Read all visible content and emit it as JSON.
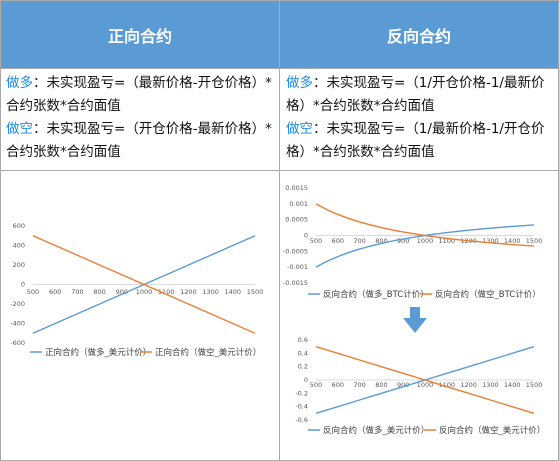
{
  "headers": {
    "left": "正向合约",
    "right": "反向合约"
  },
  "left_text": {
    "long_label": "做多",
    "long_line1": "：未实现盈亏=（最新价格-开仓价格）*",
    "long_line2": "合约张数*合约面值",
    "short_label": "做空",
    "short_line1": "：未实现盈亏=（开仓价格-最新价格）*",
    "short_line2": "合约张数*合约面值"
  },
  "right_text": {
    "long_label": "做多",
    "long_line1": "：未实现盈亏=（1/开仓价格-1/最新价",
    "long_line2": "格）*合约张数*合约面值",
    "short_label": "做空",
    "short_line1": "：未实现盈亏=（1/最新价格-1/开仓价",
    "short_line2": "格）*合约张数*合约面值"
  },
  "colors": {
    "header_bg": "#5b9bd5",
    "keyword": "#1f8dd6",
    "long_series": "#5b9bd5",
    "short_series": "#ed7d31",
    "arrow": "#5b9bd5"
  },
  "arrow_icon": "down-arrow-icon",
  "chart_data": [
    {
      "type": "line",
      "x": [
        500,
        600,
        700,
        800,
        900,
        1000,
        1100,
        1200,
        1300,
        1400,
        1500
      ],
      "x_ticks": [
        "500",
        "600",
        "700",
        "800",
        "900",
        "1000",
        "1100",
        "1200",
        "1300",
        "1400",
        "1500"
      ],
      "y_ticks": [
        "600",
        "400",
        "200",
        "0",
        "-200",
        "-400",
        "-600"
      ],
      "ylim": [
        -600,
        600
      ],
      "series": [
        {
          "name": "正向合约（做多_美元计价）",
          "values": [
            -500,
            -400,
            -300,
            -200,
            -100,
            0,
            100,
            200,
            300,
            400,
            500
          ]
        },
        {
          "name": "正向合约（做空_美元计价）",
          "values": [
            500,
            400,
            300,
            200,
            100,
            0,
            -100,
            -200,
            -300,
            -400,
            -500
          ]
        }
      ]
    },
    {
      "type": "line",
      "x": [
        500,
        600,
        700,
        800,
        900,
        1000,
        1100,
        1200,
        1300,
        1400,
        1500
      ],
      "x_ticks": [
        "500",
        "600",
        "700",
        "800",
        "900",
        "1000",
        "1100",
        "1200",
        "1300",
        "1400",
        "1500"
      ],
      "y_ticks": [
        "0.0015",
        "0.001",
        "0.0005",
        "0",
        "-0.0005",
        "-0.001",
        "-0.0015"
      ],
      "ylim": [
        -0.0015,
        0.0015
      ],
      "series": [
        {
          "name": "反向合约（做多_BTC计价）",
          "values": [
            -0.001,
            -0.000667,
            -0.000429,
            -0.00025,
            -0.000111,
            0,
            9.09e-05,
            0.000167,
            0.000231,
            0.000286,
            0.000333
          ]
        },
        {
          "name": "反向合约（做空_BTC计价）",
          "values": [
            0.001,
            0.000667,
            0.000429,
            0.00025,
            0.000111,
            0,
            -9.09e-05,
            -0.000167,
            -0.000231,
            -0.000286,
            -0.000333
          ]
        }
      ]
    },
    {
      "type": "line",
      "x": [
        500,
        600,
        700,
        800,
        900,
        1000,
        1100,
        1200,
        1300,
        1400,
        1500
      ],
      "x_ticks": [
        "500",
        "600",
        "700",
        "800",
        "900",
        "1000",
        "1100",
        "1200",
        "1300",
        "1400",
        "1500"
      ],
      "y_ticks": [
        "0.6",
        "0.4",
        "0.2",
        "0",
        "-0.2",
        "-0.4",
        "-0.6"
      ],
      "ylim": [
        -0.6,
        0.6
      ],
      "series": [
        {
          "name": "反向合约（做多_美元计价）",
          "values": [
            -0.5,
            -0.4,
            -0.3,
            -0.2,
            -0.1,
            0,
            0.1,
            0.2,
            0.3,
            0.4,
            0.5
          ]
        },
        {
          "name": "反向合约（做空_美元计价）",
          "values": [
            0.5,
            0.4,
            0.3,
            0.2,
            0.1,
            0,
            -0.1,
            -0.2,
            -0.3,
            -0.4,
            -0.5
          ]
        }
      ]
    }
  ]
}
